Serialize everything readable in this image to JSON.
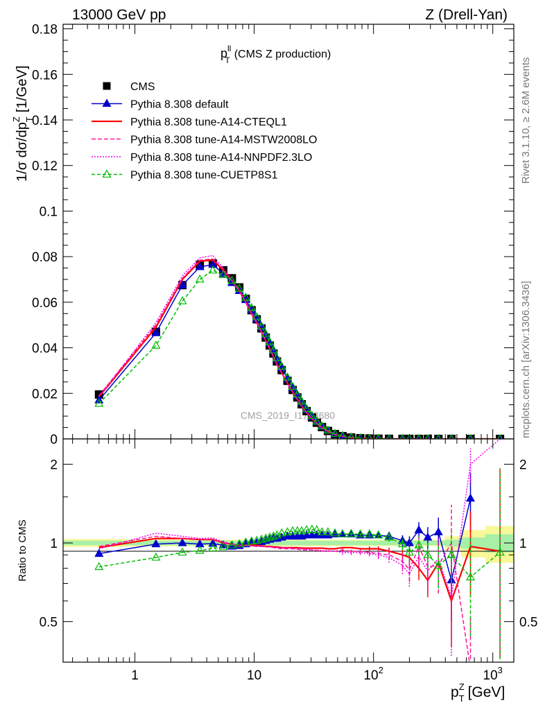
{
  "header": {
    "left": "13000 GeV pp",
    "right": "Z (Drell-Yan)",
    "side_top": "Rivet 3.1.10, ≥ 2.6M events",
    "side_bottom": "mcplots.cern.ch [arXiv:1306.3436]",
    "watermark": "CMS_2019_I1753680"
  },
  "chart_data": {
    "type": "line",
    "title": "(CMS Z production)",
    "title_symbol": "p",
    "title_sub": "T",
    "title_sup": "ll",
    "ylabel": "1/σ dσ/dp",
    "ylabel_sub": "T",
    "ylabel_sup": "Z",
    "ylabel_unit": "[1/GeV]",
    "xlabel": "p",
    "xlabel_sub": "T",
    "xlabel_sup": "Z",
    "xlabel_unit": "[GeV]",
    "x_scale": "log",
    "xlim": [
      0.25,
      1500
    ],
    "ylim": [
      0,
      0.182
    ],
    "yticks": [
      "0",
      "0.02",
      "0.04",
      "0.06",
      "0.08",
      "0.1",
      "0.12",
      "0.14",
      "0.16",
      "0.18"
    ],
    "xticks": [
      "1",
      "10",
      "10",
      "10"
    ],
    "xtick_sup": [
      "",
      "",
      "2",
      "3"
    ],
    "ratio_label": "Ratio to CMS",
    "ratio_ylim": [
      0.35,
      2.5
    ],
    "ratio_yticks": [
      "0.5",
      "1",
      "2"
    ],
    "legend_position": "top-left",
    "x": [
      0.5,
      1.5,
      2.5,
      3.5,
      4.5,
      5.5,
      6.5,
      7.5,
      8.5,
      9.5,
      10.5,
      11.5,
      12.5,
      13.5,
      14.5,
      15.5,
      17.0,
      19.0,
      21.0,
      23.0,
      25.0,
      27.5,
      30.5,
      33.5,
      37.0,
      41.5,
      47.5,
      55.0,
      65.0,
      77.5,
      92.5,
      110.0,
      135.0,
      175.0,
      200.0,
      240.0,
      285.0,
      350.0,
      450.0,
      650.0,
      1150.0
    ],
    "series": [
      {
        "name": "CMS",
        "color": "#000000",
        "marker": "square",
        "values": [
          0.0195,
          0.047,
          0.0675,
          0.0765,
          0.077,
          0.074,
          0.0705,
          0.0665,
          0.0615,
          0.0565,
          0.0525,
          0.0485,
          0.0445,
          0.041,
          0.0375,
          0.034,
          0.0302,
          0.0255,
          0.0215,
          0.0182,
          0.0152,
          0.0122,
          0.0094,
          0.0071,
          0.0052,
          0.0035,
          0.0021,
          0.0012,
          0.0006,
          0.0003,
          0.00015,
          8e-05,
          4e-05,
          1.8e-05,
          1.1e-05,
          6e-06,
          3e-06,
          1.4e-06,
          5e-07,
          2e-07,
          4e-08
        ]
      },
      {
        "name": "Pythia 8.308 default",
        "color": "#0000cc",
        "marker": "triangle-filled",
        "dash": "",
        "values": [
          0.017,
          0.0465,
          0.0675,
          0.0755,
          0.0765,
          0.0725,
          0.0685,
          0.065,
          0.061,
          0.0565,
          0.0525,
          0.049,
          0.0455,
          0.042,
          0.0385,
          0.035,
          0.0312,
          0.0265,
          0.0224,
          0.019,
          0.0159,
          0.0128,
          0.0099,
          0.0075,
          0.0055,
          0.0037,
          0.0022,
          0.0013,
          0.00065,
          0.00031,
          0.00015,
          8e-05,
          4e-05,
          1.7e-05,
          1e-05,
          6e-06,
          3e-06,
          1.4e-06,
          5e-07,
          2e-07,
          4e-08
        ],
        "ratio": [
          0.91,
          0.99,
          1.0,
          0.99,
          0.995,
          0.98,
          0.97,
          0.975,
          0.99,
          1.0,
          1.0,
          1.01,
          1.02,
          1.03,
          1.04,
          1.04,
          1.05,
          1.06,
          1.06,
          1.06,
          1.06,
          1.07,
          1.07,
          1.07,
          1.07,
          1.07,
          1.08,
          1.08,
          1.08,
          1.07,
          1.07,
          1.07,
          1.06,
          1.02,
          1.0,
          1.12,
          1.05,
          1.1,
          0.72,
          1.48,
          null
        ],
        "ratio_err": [
          0.01,
          0.01,
          0.01,
          0.01,
          0.01,
          0.01,
          0.01,
          0.01,
          0.01,
          0.01,
          0.01,
          0.01,
          0.01,
          0.01,
          0.01,
          0.01,
          0.01,
          0.01,
          0.01,
          0.01,
          0.01,
          0.01,
          0.01,
          0.01,
          0.01,
          0.01,
          0.01,
          0.01,
          0.01,
          0.01,
          0.02,
          0.02,
          0.03,
          0.05,
          0.06,
          0.08,
          0.1,
          0.15,
          0.22,
          0.38,
          0
        ]
      },
      {
        "name": "Pythia 8.308 tune-A14-CTEQL1",
        "color": "#ff0000",
        "marker": "none",
        "dash": "",
        "values": [
          0.0185,
          0.049,
          0.07,
          0.078,
          0.0785,
          0.074,
          0.0695,
          0.065,
          0.06,
          0.055,
          0.051,
          0.047,
          0.043,
          0.0395,
          0.036,
          0.0327,
          0.029,
          0.0245,
          0.0206,
          0.0174,
          0.0145,
          0.0116,
          0.0089,
          0.0067,
          0.0049,
          0.0033,
          0.002,
          0.00115,
          0.00058,
          0.00028,
          0.00014,
          7e-05,
          4e-05,
          1.6e-05,
          1e-05,
          5.5e-06,
          2.6e-06,
          1.2e-06,
          4.5e-07,
          2e-07,
          4e-08
        ],
        "ratio": [
          0.96,
          1.04,
          1.04,
          1.03,
          1.03,
          1.0,
          0.99,
          0.98,
          0.98,
          0.98,
          0.98,
          0.975,
          0.97,
          0.97,
          0.965,
          0.965,
          0.96,
          0.96,
          0.96,
          0.96,
          0.955,
          0.955,
          0.955,
          0.955,
          0.955,
          0.95,
          0.95,
          0.96,
          0.96,
          0.95,
          0.95,
          0.95,
          0.93,
          0.9,
          0.88,
          0.8,
          0.72,
          0.84,
          0.6,
          0.97,
          0.93
        ],
        "ratio_err": [
          0.01,
          0.01,
          0.01,
          0.01,
          0.01,
          0.01,
          0.01,
          0.01,
          0.01,
          0.01,
          0.01,
          0.01,
          0.01,
          0.01,
          0.01,
          0.01,
          0.01,
          0.01,
          0.01,
          0.01,
          0.01,
          0.01,
          0.01,
          0.01,
          0.01,
          0.01,
          0.01,
          0.01,
          0.01,
          0.01,
          0.02,
          0.02,
          0.03,
          0.05,
          0.06,
          0.08,
          0.1,
          0.15,
          0.2,
          0.35,
          1.0
        ]
      },
      {
        "name": "Pythia 8.308 tune-A14-MSTW2008LO",
        "color": "#ff1493",
        "marker": "none",
        "dash": "6,3",
        "values": [
          0.019,
          0.05,
          0.0705,
          0.0785,
          0.079,
          0.0745,
          0.0695,
          0.065,
          0.06,
          0.0552,
          0.051,
          0.047,
          0.043,
          0.0395,
          0.036,
          0.0325,
          0.0288,
          0.0243,
          0.0204,
          0.0172,
          0.0143,
          0.0114,
          0.0088,
          0.0066,
          0.0048,
          0.0032,
          0.00195,
          0.0011,
          0.00057,
          0.00028,
          0.00014,
          7e-05,
          4e-05,
          1.6e-05,
          9e-06,
          5.2e-06,
          2.5e-06,
          1.2e-06,
          4e-07,
          2e-07,
          4e-08
        ],
        "ratio": [
          0.97,
          1.06,
          1.04,
          1.03,
          1.03,
          1.0,
          0.985,
          0.98,
          0.975,
          0.975,
          0.97,
          0.97,
          0.965,
          0.965,
          0.96,
          0.955,
          0.95,
          0.95,
          0.95,
          0.945,
          0.94,
          0.94,
          0.94,
          0.935,
          0.93,
          0.93,
          0.93,
          0.94,
          0.93,
          0.93,
          0.92,
          0.91,
          0.9,
          0.85,
          0.79,
          0.97,
          0.81,
          0.82,
          1.0,
          0.33,
          0.33
        ],
        "ratio_err": [
          0.01,
          0.01,
          0.01,
          0.01,
          0.01,
          0.01,
          0.01,
          0.01,
          0.01,
          0.01,
          0.01,
          0.01,
          0.01,
          0.01,
          0.01,
          0.01,
          0.01,
          0.01,
          0.01,
          0.01,
          0.01,
          0.01,
          0.01,
          0.01,
          0.01,
          0.01,
          0.01,
          0.02,
          0.02,
          0.02,
          0.02,
          0.03,
          0.04,
          0.06,
          0.08,
          0.1,
          0.12,
          0.18,
          0.4,
          0.2,
          1.0
        ]
      },
      {
        "name": "Pythia 8.308 tune-A14-NNPDF2.3LO",
        "color": "#ee00ee",
        "marker": "none",
        "dash": "2,2",
        "values": [
          0.0185,
          0.051,
          0.0715,
          0.0795,
          0.0805,
          0.075,
          0.0695,
          0.065,
          0.06,
          0.0552,
          0.051,
          0.047,
          0.0432,
          0.0397,
          0.0362,
          0.0327,
          0.029,
          0.0245,
          0.0206,
          0.0173,
          0.0144,
          0.0115,
          0.0088,
          0.0066,
          0.0048,
          0.0032,
          0.0019,
          0.0011,
          0.00056,
          0.00027,
          0.00013,
          7e-05,
          4e-05,
          1.5e-05,
          9e-06,
          5e-06,
          2.4e-06,
          1.1e-06,
          4e-07,
          4e-07,
          4e-08
        ],
        "ratio": [
          0.95,
          1.09,
          1.06,
          1.04,
          1.045,
          1.01,
          0.99,
          0.98,
          0.975,
          0.975,
          0.97,
          0.97,
          0.97,
          0.965,
          0.965,
          0.96,
          0.96,
          0.96,
          0.955,
          0.95,
          0.95,
          0.945,
          0.94,
          0.94,
          0.935,
          0.935,
          0.93,
          0.92,
          0.92,
          0.92,
          0.91,
          0.9,
          0.88,
          0.82,
          0.76,
          0.89,
          0.78,
          0.87,
          0.62,
          2.0,
          2.5
        ],
        "ratio_err": [
          0.01,
          0.01,
          0.01,
          0.01,
          0.01,
          0.01,
          0.01,
          0.01,
          0.01,
          0.01,
          0.01,
          0.01,
          0.01,
          0.01,
          0.01,
          0.01,
          0.01,
          0.01,
          0.01,
          0.01,
          0.01,
          0.01,
          0.01,
          0.01,
          0.01,
          0.01,
          0.01,
          0.02,
          0.02,
          0.02,
          0.02,
          0.03,
          0.04,
          0.06,
          0.08,
          0.1,
          0.12,
          0.18,
          0.25,
          0.3,
          0
        ]
      },
      {
        "name": "Pythia 8.308 tune-CUETP8S1",
        "color": "#00bb00",
        "marker": "triangle-open",
        "dash": "5,3",
        "values": [
          0.0155,
          0.041,
          0.0605,
          0.07,
          0.074,
          0.072,
          0.0695,
          0.066,
          0.062,
          0.0575,
          0.0535,
          0.0495,
          0.046,
          0.0425,
          0.039,
          0.0355,
          0.0318,
          0.027,
          0.0229,
          0.0195,
          0.0164,
          0.0132,
          0.0102,
          0.0077,
          0.0056,
          0.0038,
          0.0023,
          0.0013,
          0.00066,
          0.00032,
          0.00016,
          8e-05,
          4e-05,
          1.7e-05,
          1e-05,
          6e-06,
          3e-06,
          1.3e-06,
          4.5e-07,
          1.5e-07,
          4e-08
        ],
        "ratio": [
          0.81,
          0.88,
          0.92,
          0.935,
          0.955,
          0.965,
          0.98,
          0.99,
          1.005,
          1.015,
          1.02,
          1.03,
          1.04,
          1.05,
          1.06,
          1.07,
          1.09,
          1.1,
          1.11,
          1.11,
          1.11,
          1.12,
          1.125,
          1.12,
          1.1,
          1.1,
          1.09,
          1.08,
          1.085,
          1.08,
          1.08,
          1.07,
          1.05,
          0.99,
          0.92,
          0.98,
          0.9,
          0.82,
          0.9,
          0.74,
          0.92
        ],
        "ratio_err": [
          0.01,
          0.01,
          0.01,
          0.01,
          0.01,
          0.01,
          0.01,
          0.01,
          0.01,
          0.01,
          0.01,
          0.01,
          0.01,
          0.01,
          0.01,
          0.01,
          0.01,
          0.01,
          0.01,
          0.01,
          0.01,
          0.01,
          0.01,
          0.01,
          0.01,
          0.01,
          0.01,
          0.01,
          0.02,
          0.02,
          0.02,
          0.03,
          0.04,
          0.05,
          0.07,
          0.08,
          0.1,
          0.15,
          0.2,
          0.3,
          1.0
        ]
      }
    ],
    "band_inner_color": "#a8f0a8",
    "band_outer_color": "#f8f898",
    "band_inner": [
      0.02,
      0.02,
      0.02,
      0.02,
      0.02,
      0.02,
      0.02,
      0.02,
      0.02,
      0.02,
      0.02,
      0.02,
      0.02,
      0.02,
      0.02,
      0.02,
      0.02,
      0.02,
      0.02,
      0.02,
      0.02,
      0.02,
      0.02,
      0.02,
      0.02,
      0.02,
      0.02,
      0.02,
      0.02,
      0.02,
      0.02,
      0.02,
      0.02,
      0.02,
      0.02,
      0.02,
      0.02,
      0.02,
      0.03,
      0.05,
      0.08
    ],
    "band_outer": [
      0.035,
      0.03,
      0.028,
      0.028,
      0.028,
      0.028,
      0.028,
      0.028,
      0.028,
      0.028,
      0.028,
      0.028,
      0.028,
      0.028,
      0.028,
      0.028,
      0.028,
      0.028,
      0.028,
      0.028,
      0.028,
      0.028,
      0.028,
      0.028,
      0.028,
      0.028,
      0.028,
      0.028,
      0.028,
      0.028,
      0.028,
      0.028,
      0.028,
      0.028,
      0.028,
      0.028,
      0.028,
      0.03,
      0.06,
      0.12,
      0.16
    ]
  }
}
